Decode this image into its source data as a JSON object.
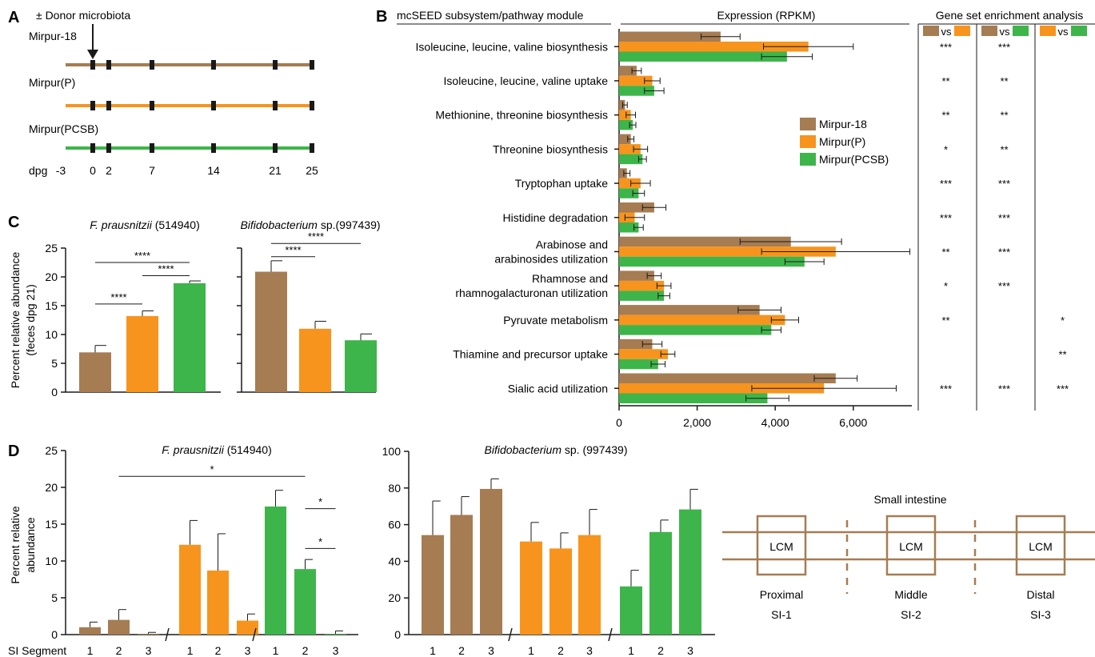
{
  "colors": {
    "brown": "#A67C52",
    "orange": "#F7941D",
    "green": "#3DB54A",
    "axis": "#1a1a1a"
  },
  "panels": {
    "a": "A",
    "b": "B",
    "c": "C",
    "d": "D"
  },
  "panelA": {
    "header": "± Donor microbiota",
    "groups": [
      "Mirpur-18",
      "Mirpur(P)",
      "Mirpur(PCSB)"
    ],
    "axis_label": "dpg",
    "days": [
      "-3",
      "0",
      "2",
      "7",
      "14",
      "21",
      "25"
    ]
  },
  "chart_data": [
    {
      "id": "B",
      "type": "bar",
      "orientation": "horizontal",
      "module_header": "mcSEED subsystem/pathway module",
      "title": "Expression (RPKM)",
      "categories": [
        "Isoleucine, leucine, valine biosynthesis",
        "Isoleucine, leucine, valine uptake",
        "Methionine, threonine biosynthesis",
        "Threonine biosynthesis",
        "Tryptophan uptake",
        "Histidine degradation",
        "Arabinose and\narabinosides utilization",
        "Rhamnose and\nrhamnogalacturonan utilization",
        "Pyruvate metabolism",
        "Thiamine and precursor uptake",
        "Sialic acid utilization"
      ],
      "series": [
        {
          "name": "Mirpur-18",
          "values": [
            2600,
            450,
            150,
            300,
            200,
            900,
            4400,
            900,
            3600,
            850,
            5550
          ],
          "errors": [
            500,
            120,
            60,
            80,
            80,
            300,
            1300,
            180,
            550,
            250,
            550
          ]
        },
        {
          "name": "Mirpur(P)",
          "values": [
            4850,
            850,
            300,
            550,
            550,
            400,
            5550,
            1150,
            4250,
            1250,
            5250
          ],
          "errors": [
            1150,
            200,
            120,
            180,
            250,
            250,
            1900,
            180,
            350,
            180,
            1850
          ]
        },
        {
          "name": "Mirpur(PCSB)",
          "values": [
            4300,
            900,
            350,
            600,
            500,
            500,
            4750,
            1150,
            3900,
            1000,
            3800
          ],
          "errors": [
            650,
            250,
            80,
            100,
            150,
            120,
            500,
            150,
            250,
            180,
            550
          ]
        }
      ],
      "xlim": [
        0,
        7500
      ],
      "xticks": [
        "0",
        "2,000",
        "4,000",
        "6,000"
      ],
      "xtick_values": [
        0,
        2000,
        4000,
        6000
      ],
      "legend": [
        "Mirpur-18",
        "Mirpur(P)",
        "Mirpur(PCSB)"
      ],
      "legend_position": "right",
      "gsea": {
        "title": "Gene set enrichment analysis",
        "vs": "vs",
        "comparisons": [
          [
            "Mirpur-18",
            "Mirpur(P)"
          ],
          [
            "Mirpur-18",
            "Mirpur(PCSB)"
          ],
          [
            "Mirpur(P)",
            "Mirpur(PCSB)"
          ]
        ],
        "rows": [
          [
            "***",
            "***",
            ""
          ],
          [
            "**",
            "**",
            ""
          ],
          [
            "**",
            "**",
            ""
          ],
          [
            "*",
            "**",
            ""
          ],
          [
            "***",
            "***",
            ""
          ],
          [
            "***",
            "***",
            ""
          ],
          [
            "**",
            "***",
            ""
          ],
          [
            "*",
            "***",
            ""
          ],
          [
            "**",
            "",
            "*"
          ],
          [
            "",
            "",
            "**"
          ],
          [
            "***",
            "***",
            "***"
          ]
        ]
      }
    },
    {
      "id": "C",
      "type": "bar",
      "ylabel": [
        "Percent relative abundance",
        "(feces dpg 21)"
      ],
      "ylim": [
        0,
        25
      ],
      "yticks": [
        "0",
        "5",
        "10",
        "15",
        "20",
        "25"
      ],
      "ytick_values": [
        0,
        5,
        10,
        15,
        20,
        25
      ],
      "subplots": [
        {
          "title_italic": "F. prausnitzii",
          "title_rest": " (514940)",
          "categories": [
            "Mirpur-18",
            "Mirpur(P)",
            "Mirpur(PCSB)"
          ],
          "values": [
            6.9,
            13.2,
            18.9
          ],
          "errors": [
            1.2,
            0.9,
            0.4
          ],
          "significance": [
            {
              "from": 0,
              "to": 1,
              "label": "****",
              "y": 15.3
            },
            {
              "from": 1,
              "to": 2,
              "label": "****",
              "y": 20.2
            },
            {
              "from": 0,
              "to": 2,
              "label": "****",
              "y": 22.5
            }
          ]
        },
        {
          "title_italic": "Bifidobacterium",
          "title_rest": " sp.(997439)",
          "categories": [
            "Mirpur-18",
            "Mirpur(P)",
            "Mirpur(PCSB)"
          ],
          "values": [
            20.9,
            11.0,
            9.0
          ],
          "errors": [
            1.9,
            1.3,
            1.1
          ],
          "significance": [
            {
              "from": 0,
              "to": 1,
              "label": "****",
              "y": 23.5
            },
            {
              "from": 0,
              "to": 2,
              "label": "****",
              "y": 25.8
            }
          ]
        }
      ]
    },
    {
      "id": "D1",
      "type": "bar",
      "title_italic": "F. prausnitzii",
      "title_rest": " (514940)",
      "ylabel": [
        "Percent relative",
        "abundance"
      ],
      "xlabel": "SI Segment",
      "ylim": [
        0,
        25
      ],
      "yticks": [
        "0",
        "5",
        "10",
        "15",
        "20",
        "25"
      ],
      "ytick_values": [
        0,
        5,
        10,
        15,
        20,
        25
      ],
      "segment_labels": [
        "1",
        "2",
        "3"
      ],
      "series": [
        {
          "name": "Mirpur-18",
          "values": [
            1.0,
            2.0,
            0.1
          ],
          "errors": [
            0.7,
            1.4,
            0.2
          ]
        },
        {
          "name": "Mirpur(P)",
          "values": [
            12.2,
            8.7,
            1.9
          ],
          "errors": [
            3.3,
            5.0,
            0.9
          ]
        },
        {
          "name": "Mirpur(PCSB)",
          "values": [
            17.4,
            8.9,
            0.1
          ],
          "errors": [
            2.2,
            1.3,
            0.4
          ]
        }
      ],
      "significance": [
        {
          "from": [
            0,
            1
          ],
          "to": [
            2,
            1
          ],
          "label": "*",
          "y": 21.5
        },
        {
          "from": [
            2,
            1
          ],
          "to": [
            2,
            2
          ],
          "label": "*",
          "y": 17.1
        },
        {
          "from": [
            2,
            1
          ],
          "to": [
            2,
            2
          ],
          "label": "*",
          "y": 11.7
        }
      ]
    },
    {
      "id": "D2",
      "type": "bar",
      "title_italic": "Bifidobacterium",
      "title_rest": " sp. (997439)",
      "ylim": [
        0,
        100
      ],
      "yticks": [
        "0",
        "20",
        "40",
        "60",
        "80",
        "100"
      ],
      "ytick_values": [
        0,
        20,
        40,
        60,
        80,
        100
      ],
      "segment_labels": [
        "1",
        "2",
        "3"
      ],
      "series": [
        {
          "name": "Mirpur-18",
          "values": [
            54.3,
            65.3,
            79.5
          ],
          "errors": [
            18.6,
            10.0,
            5.5
          ]
        },
        {
          "name": "Mirpur(P)",
          "values": [
            50.8,
            47.0,
            54.3
          ],
          "errors": [
            10.4,
            8.5,
            14.0
          ]
        },
        {
          "name": "Mirpur(PCSB)",
          "values": [
            26.3,
            56.0,
            68.3
          ],
          "errors": [
            8.8,
            6.5,
            11.0
          ]
        }
      ]
    }
  ],
  "diagram": {
    "title": "Small intestine",
    "box_label": "LCM",
    "segments": [
      {
        "name": "Proximal",
        "code": "SI-1"
      },
      {
        "name": "Middle",
        "code": "SI-2"
      },
      {
        "name": "Distal",
        "code": "SI-3"
      }
    ]
  }
}
